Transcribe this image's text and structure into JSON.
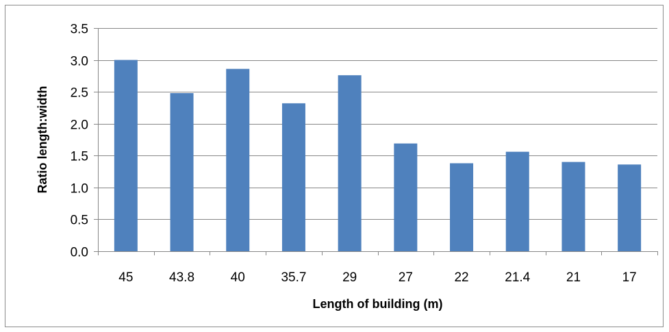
{
  "chart_data": {
    "type": "bar",
    "title": "",
    "xlabel": "Length of building (m)",
    "ylabel": "Ratio length:width",
    "categories": [
      "45",
      "43.8",
      "40",
      "35.7",
      "29",
      "27",
      "22",
      "21.4",
      "21",
      "17"
    ],
    "values": [
      3.0,
      2.48,
      2.86,
      2.32,
      2.76,
      1.69,
      1.38,
      1.56,
      1.4,
      1.36
    ],
    "ylim": [
      0,
      3.5
    ],
    "yticks": [
      "0.0",
      "0.5",
      "1.0",
      "1.5",
      "2.0",
      "2.5",
      "3.0",
      "3.5"
    ],
    "grid": true,
    "legend": "none",
    "colors": {
      "bar": "#4f81bd",
      "grid": "#868686",
      "axis": "#868686",
      "frame": "#8c8c8c"
    }
  }
}
